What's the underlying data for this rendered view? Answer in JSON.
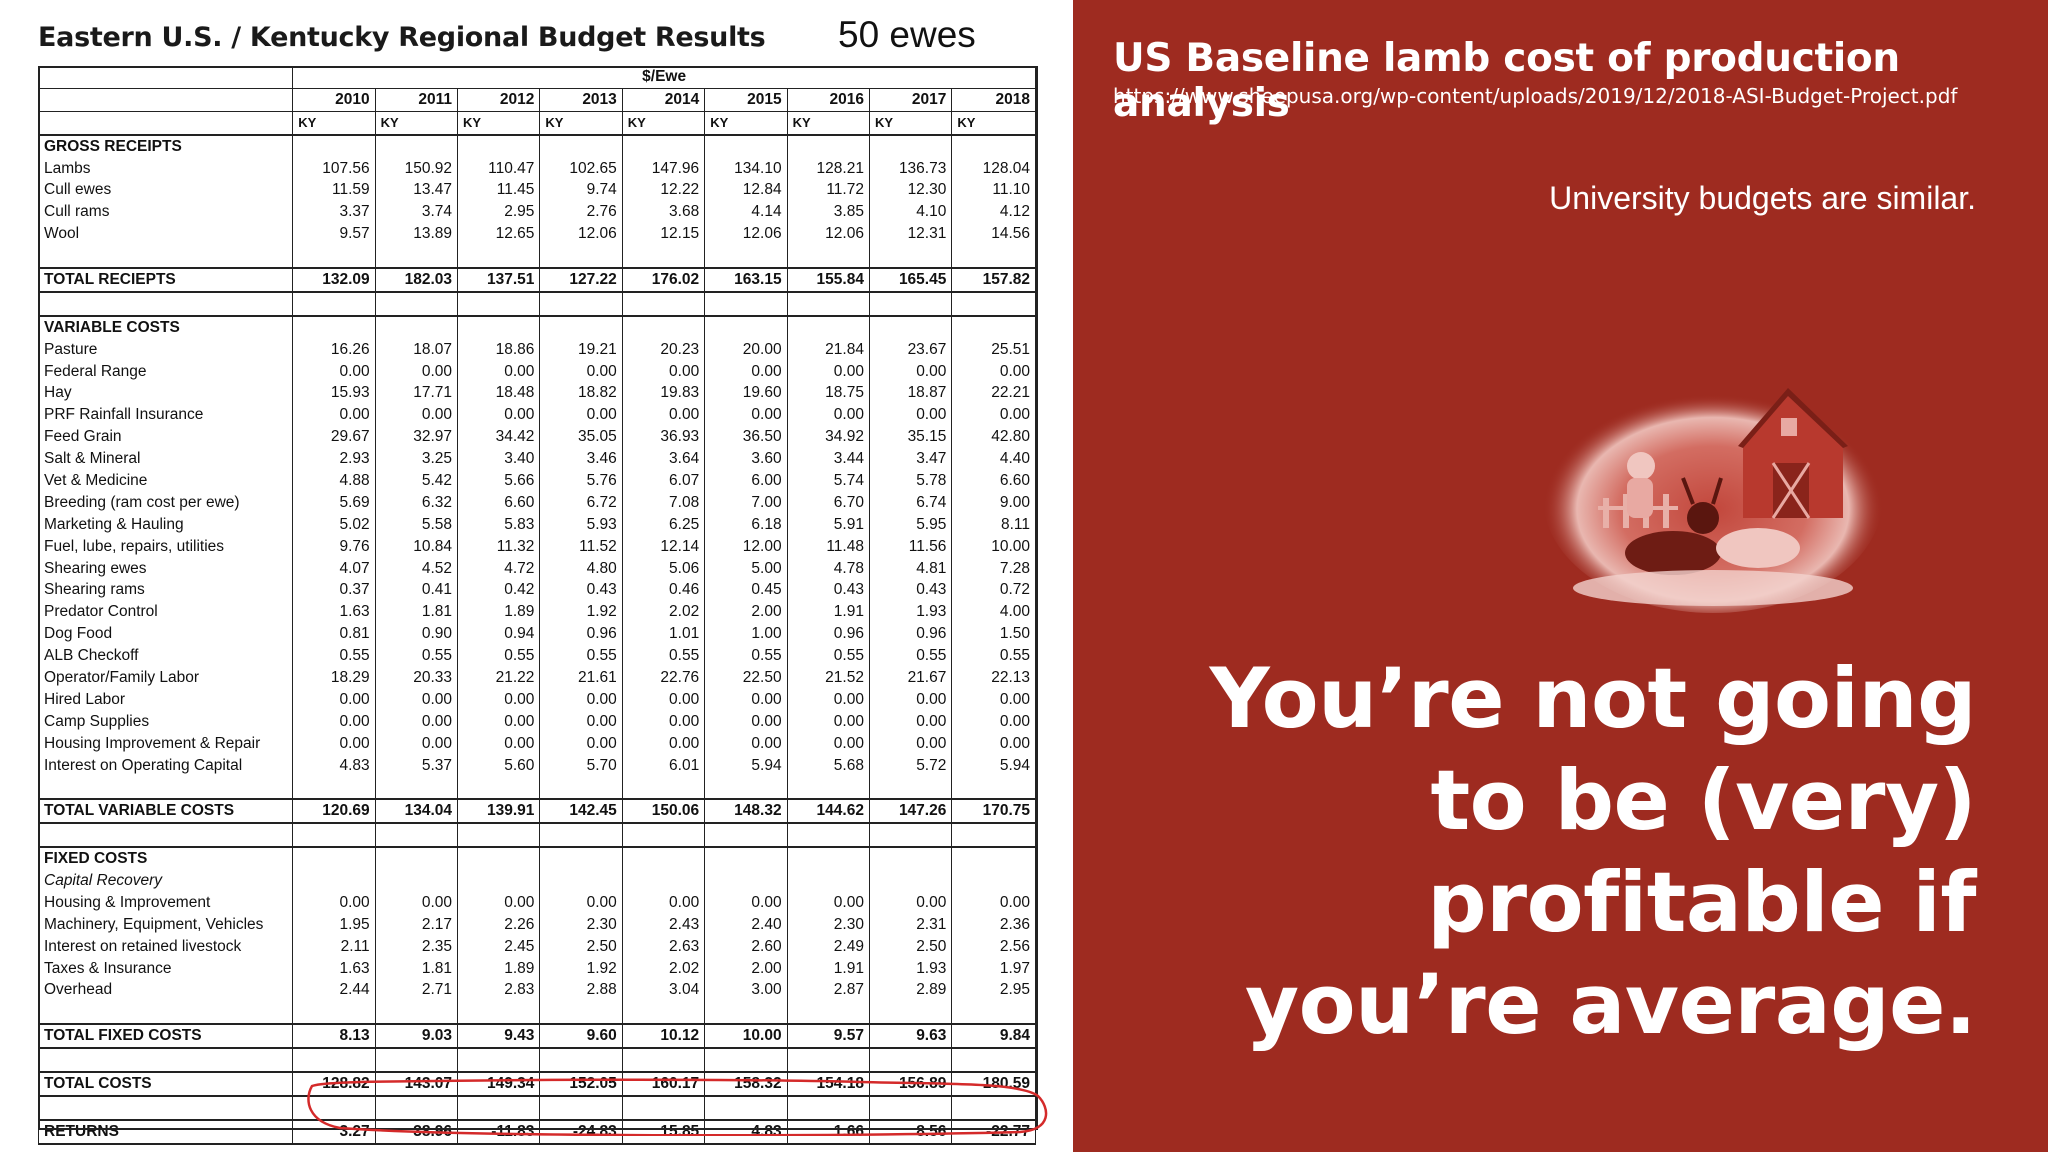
{
  "left": {
    "title": "Eastern U.S. / Kentucky Regional Budget Results",
    "ewes_label": "50 ewes",
    "unit_header": "$/Ewe",
    "years": [
      "2010",
      "2011",
      "2012",
      "2013",
      "2014",
      "2015",
      "2016",
      "2017",
      "2018"
    ],
    "state": "KY",
    "rows": [
      {
        "type": "section",
        "label": "GROSS RECEIPTS"
      },
      {
        "type": "row",
        "label": "Lambs",
        "values": [
          "107.56",
          "150.92",
          "110.47",
          "102.65",
          "147.96",
          "134.10",
          "128.21",
          "136.73",
          "128.04"
        ]
      },
      {
        "type": "row",
        "label": "Cull ewes",
        "values": [
          "11.59",
          "13.47",
          "11.45",
          "9.74",
          "12.22",
          "12.84",
          "11.72",
          "12.30",
          "11.10"
        ]
      },
      {
        "type": "row",
        "label": "Cull rams",
        "values": [
          "3.37",
          "3.74",
          "2.95",
          "2.76",
          "3.68",
          "4.14",
          "3.85",
          "4.10",
          "4.12"
        ]
      },
      {
        "type": "row",
        "label": "Wool",
        "values": [
          "9.57",
          "13.89",
          "12.65",
          "12.06",
          "12.15",
          "12.06",
          "12.06",
          "12.31",
          "14.56"
        ]
      },
      {
        "type": "spacer"
      },
      {
        "type": "total",
        "label": "TOTAL RECIEPTS",
        "values": [
          "132.09",
          "182.03",
          "137.51",
          "127.22",
          "176.02",
          "163.15",
          "155.84",
          "165.45",
          "157.82"
        ]
      },
      {
        "type": "spacer"
      },
      {
        "type": "section",
        "label": "VARIABLE COSTS"
      },
      {
        "type": "row",
        "label": "Pasture",
        "values": [
          "16.26",
          "18.07",
          "18.86",
          "19.21",
          "20.23",
          "20.00",
          "21.84",
          "23.67",
          "25.51"
        ]
      },
      {
        "type": "row",
        "label": "Federal Range",
        "values": [
          "0.00",
          "0.00",
          "0.00",
          "0.00",
          "0.00",
          "0.00",
          "0.00",
          "0.00",
          "0.00"
        ]
      },
      {
        "type": "row",
        "label": "Hay",
        "values": [
          "15.93",
          "17.71",
          "18.48",
          "18.82",
          "19.83",
          "19.60",
          "18.75",
          "18.87",
          "22.21"
        ]
      },
      {
        "type": "row",
        "label": "PRF Rainfall Insurance",
        "values": [
          "0.00",
          "0.00",
          "0.00",
          "0.00",
          "0.00",
          "0.00",
          "0.00",
          "0.00",
          "0.00"
        ]
      },
      {
        "type": "row",
        "label": "Feed Grain",
        "values": [
          "29.67",
          "32.97",
          "34.42",
          "35.05",
          "36.93",
          "36.50",
          "34.92",
          "35.15",
          "42.80"
        ]
      },
      {
        "type": "row",
        "label": "Salt & Mineral",
        "values": [
          "2.93",
          "3.25",
          "3.40",
          "3.46",
          "3.64",
          "3.60",
          "3.44",
          "3.47",
          "4.40"
        ]
      },
      {
        "type": "row",
        "label": "Vet & Medicine",
        "values": [
          "4.88",
          "5.42",
          "5.66",
          "5.76",
          "6.07",
          "6.00",
          "5.74",
          "5.78",
          "6.60"
        ]
      },
      {
        "type": "row",
        "label": "Breeding (ram cost per ewe)",
        "values": [
          "5.69",
          "6.32",
          "6.60",
          "6.72",
          "7.08",
          "7.00",
          "6.70",
          "6.74",
          "9.00"
        ]
      },
      {
        "type": "row",
        "label": "Marketing & Hauling",
        "values": [
          "5.02",
          "5.58",
          "5.83",
          "5.93",
          "6.25",
          "6.18",
          "5.91",
          "5.95",
          "8.11"
        ]
      },
      {
        "type": "row",
        "label": "Fuel, lube, repairs, utilities",
        "values": [
          "9.76",
          "10.84",
          "11.32",
          "11.52",
          "12.14",
          "12.00",
          "11.48",
          "11.56",
          "10.00"
        ]
      },
      {
        "type": "row",
        "label": "Shearing ewes",
        "values": [
          "4.07",
          "4.52",
          "4.72",
          "4.80",
          "5.06",
          "5.00",
          "4.78",
          "4.81",
          "7.28"
        ]
      },
      {
        "type": "row",
        "label": "Shearing rams",
        "values": [
          "0.37",
          "0.41",
          "0.42",
          "0.43",
          "0.46",
          "0.45",
          "0.43",
          "0.43",
          "0.72"
        ]
      },
      {
        "type": "row",
        "label": "Predator Control",
        "values": [
          "1.63",
          "1.81",
          "1.89",
          "1.92",
          "2.02",
          "2.00",
          "1.91",
          "1.93",
          "4.00"
        ]
      },
      {
        "type": "row",
        "label": "Dog Food",
        "values": [
          "0.81",
          "0.90",
          "0.94",
          "0.96",
          "1.01",
          "1.00",
          "0.96",
          "0.96",
          "1.50"
        ]
      },
      {
        "type": "row",
        "label": "ALB Checkoff",
        "values": [
          "0.55",
          "0.55",
          "0.55",
          "0.55",
          "0.55",
          "0.55",
          "0.55",
          "0.55",
          "0.55"
        ]
      },
      {
        "type": "row",
        "label": "Operator/Family Labor",
        "values": [
          "18.29",
          "20.33",
          "21.22",
          "21.61",
          "22.76",
          "22.50",
          "21.52",
          "21.67",
          "22.13"
        ]
      },
      {
        "type": "row",
        "label": "Hired Labor",
        "values": [
          "0.00",
          "0.00",
          "0.00",
          "0.00",
          "0.00",
          "0.00",
          "0.00",
          "0.00",
          "0.00"
        ]
      },
      {
        "type": "row",
        "label": "Camp Supplies",
        "values": [
          "0.00",
          "0.00",
          "0.00",
          "0.00",
          "0.00",
          "0.00",
          "0.00",
          "0.00",
          "0.00"
        ]
      },
      {
        "type": "row",
        "label": "Housing Improvement & Repair",
        "values": [
          "0.00",
          "0.00",
          "0.00",
          "0.00",
          "0.00",
          "0.00",
          "0.00",
          "0.00",
          "0.00"
        ]
      },
      {
        "type": "row",
        "label": "Interest on Operating Capital",
        "values": [
          "4.83",
          "5.37",
          "5.60",
          "5.70",
          "6.01",
          "5.94",
          "5.68",
          "5.72",
          "5.94"
        ]
      },
      {
        "type": "spacer"
      },
      {
        "type": "total",
        "label": "TOTAL VARIABLE COSTS",
        "values": [
          "120.69",
          "134.04",
          "139.91",
          "142.45",
          "150.06",
          "148.32",
          "144.62",
          "147.26",
          "170.75"
        ]
      },
      {
        "type": "spacer"
      },
      {
        "type": "section",
        "label": "FIXED COSTS"
      },
      {
        "type": "italic",
        "label": "Capital Recovery"
      },
      {
        "type": "row",
        "label": "Housing & Improvement",
        "values": [
          "0.00",
          "0.00",
          "0.00",
          "0.00",
          "0.00",
          "0.00",
          "0.00",
          "0.00",
          "0.00"
        ]
      },
      {
        "type": "row",
        "label": "Machinery, Equipment, Vehicles",
        "values": [
          "1.95",
          "2.17",
          "2.26",
          "2.30",
          "2.43",
          "2.40",
          "2.30",
          "2.31",
          "2.36"
        ]
      },
      {
        "type": "row",
        "label": "Interest on retained livestock",
        "values": [
          "2.11",
          "2.35",
          "2.45",
          "2.50",
          "2.63",
          "2.60",
          "2.49",
          "2.50",
          "2.56"
        ]
      },
      {
        "type": "row",
        "label": "Taxes & Insurance",
        "values": [
          "1.63",
          "1.81",
          "1.89",
          "1.92",
          "2.02",
          "2.00",
          "1.91",
          "1.93",
          "1.97"
        ]
      },
      {
        "type": "row",
        "label": "Overhead",
        "values": [
          "2.44",
          "2.71",
          "2.83",
          "2.88",
          "3.04",
          "3.00",
          "2.87",
          "2.89",
          "2.95"
        ]
      },
      {
        "type": "spacer"
      },
      {
        "type": "total",
        "label": "TOTAL FIXED COSTS",
        "values": [
          "8.13",
          "9.03",
          "9.43",
          "9.60",
          "10.12",
          "10.00",
          "9.57",
          "9.63",
          "9.84"
        ]
      },
      {
        "type": "spacer"
      },
      {
        "type": "total",
        "label": "TOTAL COSTS",
        "values": [
          "128.82",
          "143.07",
          "149.34",
          "152.05",
          "160.17",
          "158.32",
          "154.18",
          "156.89",
          "180.59"
        ]
      },
      {
        "type": "spacer"
      },
      {
        "type": "total",
        "label": "RETURNS",
        "values": [
          "3.27",
          "38.96",
          "-11.83",
          "-24.83",
          "15.85",
          "4.83",
          "1.66",
          "8.56",
          "-22.77"
        ]
      }
    ],
    "oval_color": "#d42a2a"
  },
  "right": {
    "title": "US Baseline lamb cost of production analysis",
    "url": "https://www.sheepusa.org/wp-content/uploads/2019/12/2018-ASI-Budget-Project.pdf",
    "note": "University budgets are similar.",
    "headline": "You’re not going to be (very) profitable if you’re average.",
    "illustration_icon": "farm-barn-animals-icon",
    "background_color": "#9e2b20"
  }
}
